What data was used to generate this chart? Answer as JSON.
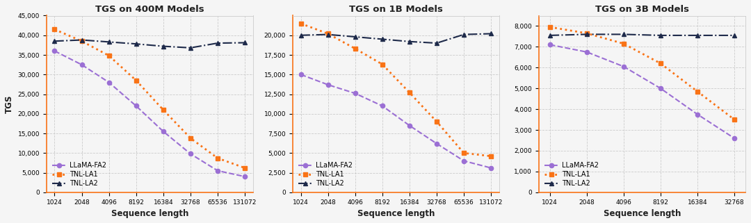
{
  "plots": [
    {
      "title": "TGS on 400M Models",
      "x_vals": [
        1024,
        2048,
        4096,
        8192,
        16384,
        32768,
        65536,
        131072
      ],
      "llama_fa2": [
        36000,
        32500,
        28000,
        22000,
        15500,
        9800,
        5500,
        4000
      ],
      "tnl_la1": [
        41500,
        38500,
        34800,
        28500,
        21000,
        13800,
        8700,
        6200
      ],
      "tnl_la2": [
        38500,
        38800,
        38300,
        37800,
        37200,
        36800,
        38000,
        38100
      ],
      "ylim": [
        0,
        45000
      ],
      "yticks": [
        0,
        5000,
        10000,
        15000,
        20000,
        25000,
        30000,
        35000,
        40000,
        45000
      ]
    },
    {
      "title": "TGS on 1B Models",
      "x_vals": [
        1024,
        2048,
        4096,
        8192,
        16384,
        32768,
        65536,
        131072
      ],
      "llama_fa2": [
        15000,
        13700,
        12600,
        11000,
        8500,
        6200,
        4000,
        3100
      ],
      "tnl_la1": [
        21500,
        20200,
        18300,
        16300,
        12700,
        9000,
        5000,
        4600
      ],
      "tnl_la2": [
        20000,
        20100,
        19800,
        19500,
        19200,
        19000,
        20100,
        20200
      ],
      "ylim": [
        0,
        22500
      ],
      "yticks": [
        0,
        2500,
        5000,
        7500,
        10000,
        12500,
        15000,
        17500,
        20000
      ]
    },
    {
      "title": "TGS on 3B Models",
      "x_vals": [
        1024,
        2048,
        4096,
        8192,
        16384,
        32768
      ],
      "llama_fa2": [
        7100,
        6750,
        6050,
        5000,
        3750,
        2600
      ],
      "tnl_la1": [
        7950,
        7650,
        7150,
        6200,
        4850,
        3500
      ],
      "tnl_la2": [
        7550,
        7600,
        7600,
        7550,
        7550,
        7550
      ],
      "ylim": [
        0,
        8500
      ],
      "yticks": [
        0,
        1000,
        2000,
        3000,
        4000,
        5000,
        6000,
        7000,
        8000
      ]
    }
  ],
  "colors": {
    "llama_fa2": "#9b6fd4",
    "tnl_la1": "#f97316",
    "tnl_la2": "#1e2a4a"
  },
  "bg_color": "#f5f5f5",
  "ylabel": "TGS",
  "xlabel": "Sequence length",
  "legend_labels": [
    "LLaMA-FA2",
    "TNL-LA1",
    "TNL-LA2"
  ]
}
